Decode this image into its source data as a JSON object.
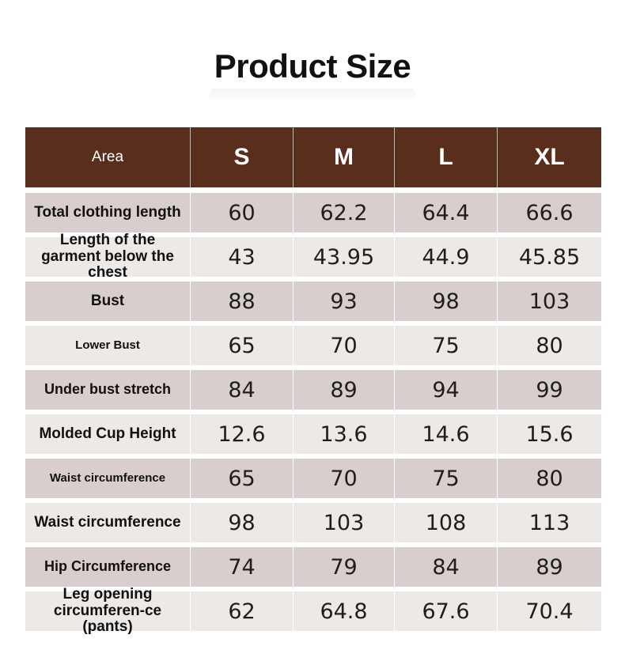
{
  "title": "Product Size",
  "table": {
    "headers": [
      "Area",
      "S",
      "M",
      "L",
      "XL"
    ],
    "rows": [
      {
        "label": "Total clothing length",
        "values": [
          "60",
          "62.2",
          "64.4",
          "66.6"
        ]
      },
      {
        "label": "Length of the garment below the chest",
        "values": [
          "43",
          "43.95",
          "44.9",
          "45.85"
        ]
      },
      {
        "label": "Bust",
        "values": [
          "88",
          "93",
          "98",
          "103"
        ]
      },
      {
        "label": "Lower Bust",
        "values": [
          "65",
          "70",
          "75",
          "80"
        ]
      },
      {
        "label": "Under bust stretch",
        "values": [
          "84",
          "89",
          "94",
          "99"
        ]
      },
      {
        "label": "Molded Cup Height",
        "values": [
          "12.6",
          "13.6",
          "14.6",
          "15.6"
        ]
      },
      {
        "label": "Waist circumference",
        "values": [
          "65",
          "70",
          "75",
          "80"
        ]
      },
      {
        "label": "Waist circumference",
        "values": [
          "98",
          "103",
          "108",
          "113"
        ]
      },
      {
        "label": "Hip Circumference",
        "values": [
          "74",
          "79",
          "84",
          "89"
        ]
      },
      {
        "label": "Leg opening circumferen-ce (pants)",
        "values": [
          "62",
          "64.8",
          "67.6",
          "70.4"
        ]
      }
    ]
  },
  "colors": {
    "header_bg": "#5a2e1c",
    "row_dark": "#d8cecd",
    "row_light": "#ece9e7"
  }
}
